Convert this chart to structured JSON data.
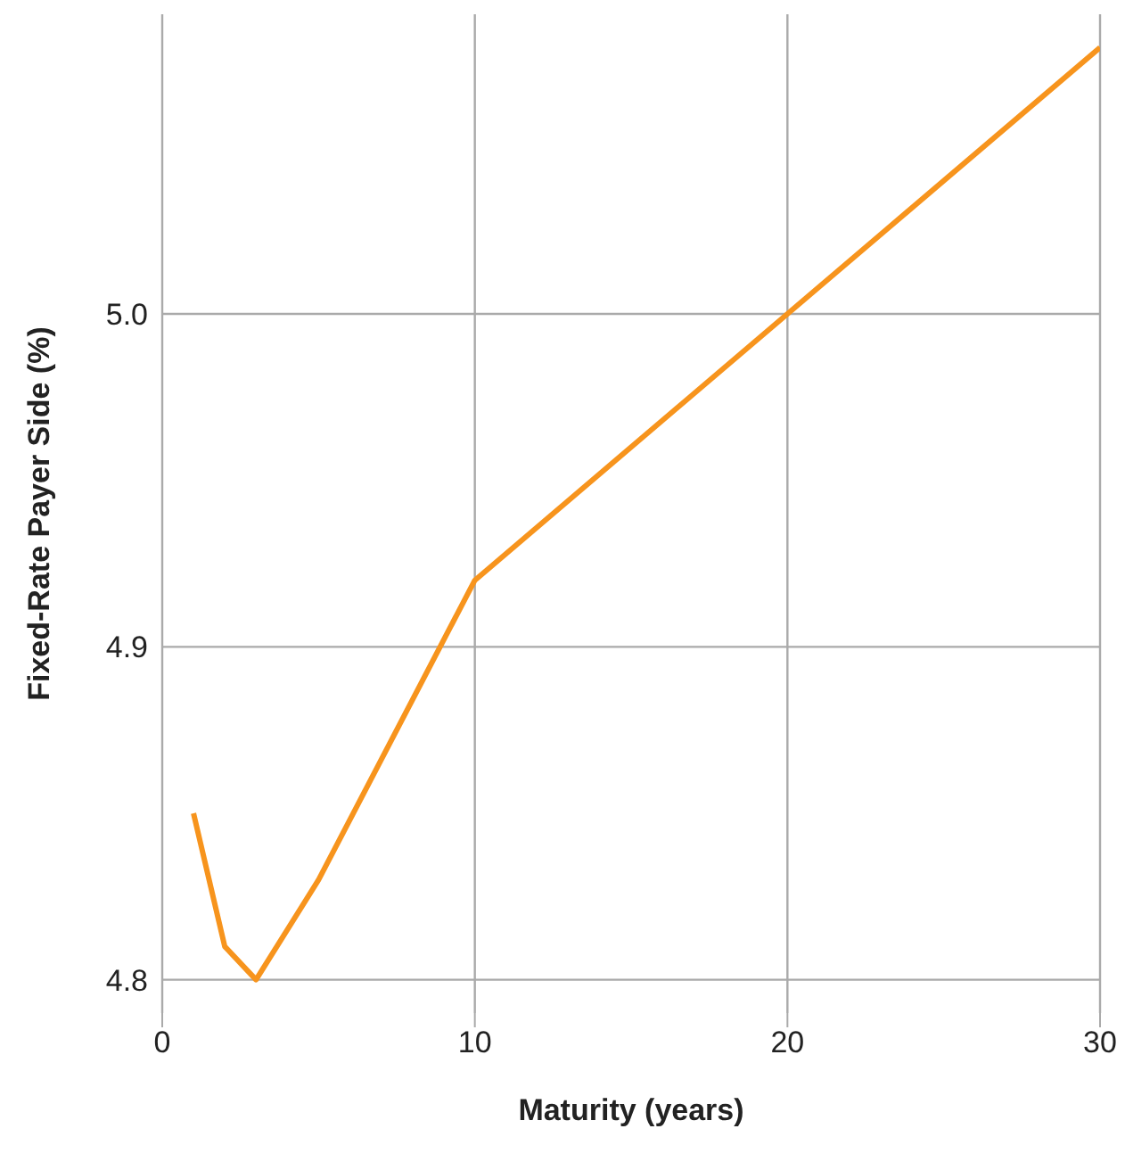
{
  "chart_data": {
    "type": "line",
    "xlabel": "Maturity (years)",
    "ylabel": "Fixed-Rate Payer Side (%)",
    "x": [
      1,
      2,
      3,
      5,
      10,
      20,
      30
    ],
    "series": [
      {
        "color": "#f7941d",
        "values": [
          4.85,
          4.81,
          4.8,
          4.83,
          4.92,
          5.0,
          5.08
        ]
      }
    ],
    "xlim": [
      0,
      30
    ],
    "xticks": [
      0,
      10,
      20,
      30
    ],
    "ylim": [
      4.79,
      5.09
    ],
    "yticks": [
      {
        "value": 4.8,
        "label": "4.8"
      },
      {
        "value": 4.9,
        "label": "4.9"
      },
      {
        "value": 5.0,
        "label": "5.0"
      }
    ],
    "grid": true,
    "marker": "none",
    "line_style": "solid",
    "legend": false
  }
}
